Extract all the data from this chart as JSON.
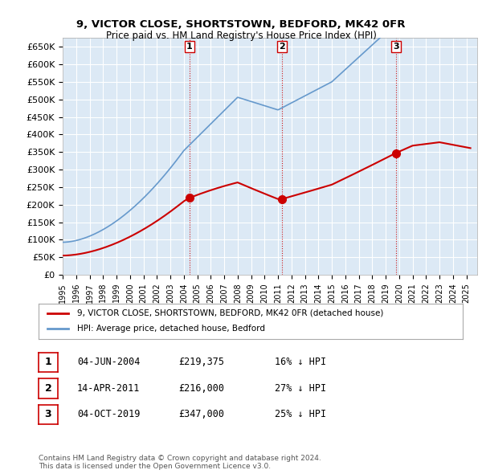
{
  "title1": "9, VICTOR CLOSE, SHORTSTOWN, BEDFORD, MK42 0FR",
  "title2": "Price paid vs. HM Land Registry's House Price Index (HPI)",
  "ylabel_vals": [
    "£0",
    "£50K",
    "£100K",
    "£150K",
    "£200K",
    "£250K",
    "£300K",
    "£350K",
    "£400K",
    "£450K",
    "£500K",
    "£550K",
    "£600K",
    "£650K"
  ],
  "ylim": [
    0,
    675000
  ],
  "xlim_start": 1995.0,
  "xlim_end": 2025.5,
  "bg_color": "#dce9f5",
  "plot_bg": "#dce9f5",
  "grid_color": "#ffffff",
  "red_line_color": "#cc0000",
  "blue_line_color": "#6699cc",
  "sale_marker_color": "#cc0000",
  "sale_vline_color": "#cc0000",
  "sales": [
    {
      "num": 1,
      "date_x": 2004.42,
      "price": 219375,
      "label": "04-JUN-2004",
      "pct": "16%",
      "marker_y": 219375
    },
    {
      "num": 2,
      "date_x": 2011.28,
      "price": 216000,
      "label": "14-APR-2011",
      "pct": "27%",
      "marker_y": 216000
    },
    {
      "num": 3,
      "date_x": 2019.75,
      "price": 347000,
      "label": "04-OCT-2019",
      "pct": "25%",
      "marker_y": 347000
    }
  ],
  "legend_line1": "9, VICTOR CLOSE, SHORTSTOWN, BEDFORD, MK42 0FR (detached house)",
  "legend_line2": "HPI: Average price, detached house, Bedford",
  "footer1": "Contains HM Land Registry data © Crown copyright and database right 2024.",
  "footer2": "This data is licensed under the Open Government Licence v3.0.",
  "table_rows": [
    {
      "num": 1,
      "date": "04-JUN-2004",
      "price": "£219,375",
      "pct": "16% ↓ HPI"
    },
    {
      "num": 2,
      "date": "14-APR-2011",
      "price": "£216,000",
      "pct": "27% ↓ HPI"
    },
    {
      "num": 3,
      "date": "04-OCT-2019",
      "price": "£347,000",
      "pct": "25% ↓ HPI"
    }
  ]
}
